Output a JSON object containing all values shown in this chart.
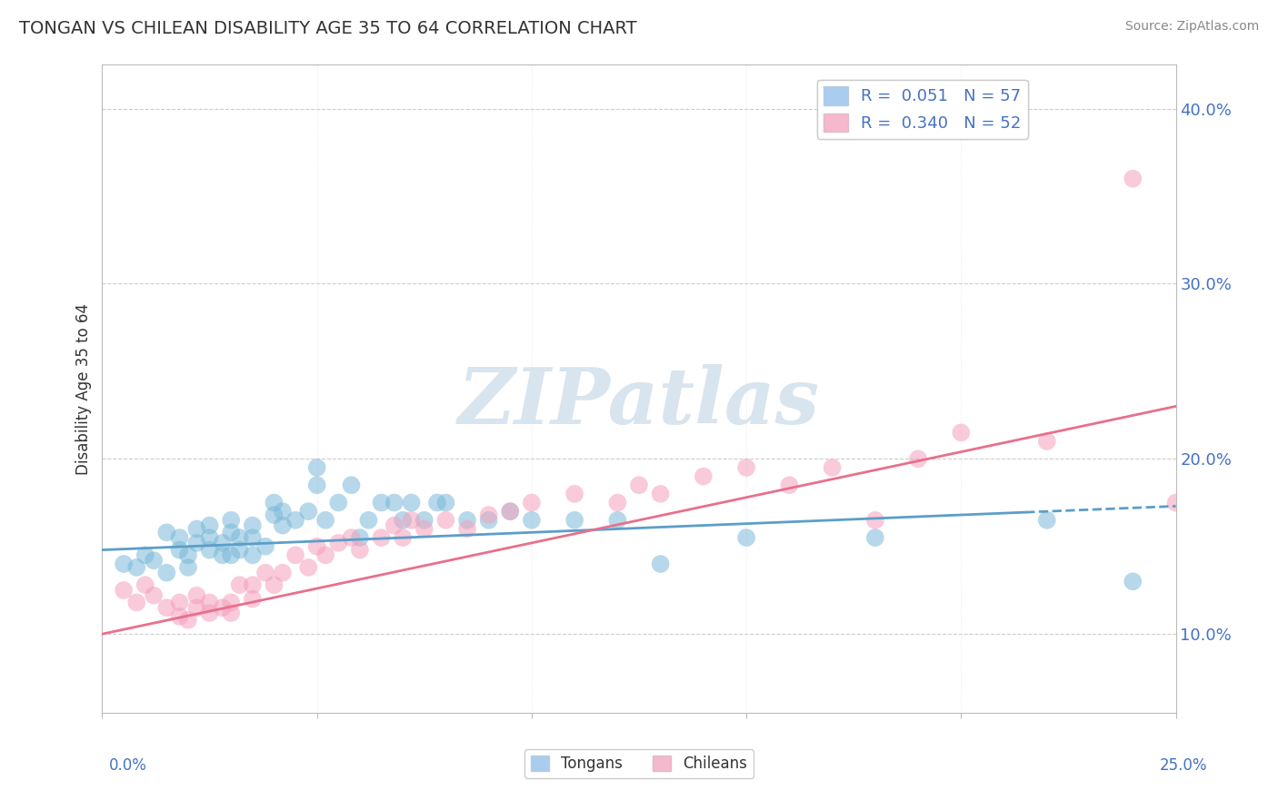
{
  "title": "TONGAN VS CHILEAN DISABILITY AGE 35 TO 64 CORRELATION CHART",
  "source": "Source: ZipAtlas.com",
  "ylabel": "Disability Age 35 to 64",
  "yticks": [
    0.1,
    0.2,
    0.3,
    0.4
  ],
  "ytick_labels": [
    "10.0%",
    "20.0%",
    "30.0%",
    "40.0%"
  ],
  "xlim": [
    0.0,
    0.25
  ],
  "ylim": [
    0.055,
    0.425
  ],
  "tongans_color": "#7ab8d9",
  "chileans_color": "#f5a0bc",
  "tongans_line_color": "#5b9ec9",
  "chileans_line_color": "#e8708a",
  "watermark": "ZIPatlas",
  "watermark_color": "#d8e4ee",
  "legend_label_1": "R =  0.051   N = 57",
  "legend_label_2": "R =  0.340   N = 52",
  "legend_color_1": "#aaccee",
  "legend_color_2": "#f5b8cc",
  "bottom_legend_1": "Tongans",
  "bottom_legend_2": "Chileans",
  "tongans_x": [
    0.005,
    0.008,
    0.01,
    0.012,
    0.015,
    0.015,
    0.018,
    0.018,
    0.02,
    0.02,
    0.022,
    0.022,
    0.025,
    0.025,
    0.025,
    0.028,
    0.028,
    0.03,
    0.03,
    0.03,
    0.032,
    0.032,
    0.035,
    0.035,
    0.035,
    0.038,
    0.04,
    0.04,
    0.042,
    0.042,
    0.045,
    0.048,
    0.05,
    0.05,
    0.052,
    0.055,
    0.058,
    0.06,
    0.062,
    0.065,
    0.068,
    0.07,
    0.072,
    0.075,
    0.078,
    0.08,
    0.085,
    0.09,
    0.095,
    0.1,
    0.11,
    0.12,
    0.13,
    0.15,
    0.18,
    0.22,
    0.24
  ],
  "tongans_y": [
    0.14,
    0.138,
    0.145,
    0.142,
    0.158,
    0.135,
    0.148,
    0.155,
    0.145,
    0.138,
    0.152,
    0.16,
    0.148,
    0.155,
    0.162,
    0.145,
    0.152,
    0.145,
    0.158,
    0.165,
    0.148,
    0.155,
    0.145,
    0.155,
    0.162,
    0.15,
    0.168,
    0.175,
    0.162,
    0.17,
    0.165,
    0.17,
    0.185,
    0.195,
    0.165,
    0.175,
    0.185,
    0.155,
    0.165,
    0.175,
    0.175,
    0.165,
    0.175,
    0.165,
    0.175,
    0.175,
    0.165,
    0.165,
    0.17,
    0.165,
    0.165,
    0.165,
    0.14,
    0.155,
    0.155,
    0.165,
    0.13
  ],
  "chileans_x": [
    0.005,
    0.008,
    0.01,
    0.012,
    0.015,
    0.018,
    0.018,
    0.02,
    0.022,
    0.022,
    0.025,
    0.025,
    0.028,
    0.03,
    0.03,
    0.032,
    0.035,
    0.035,
    0.038,
    0.04,
    0.042,
    0.045,
    0.048,
    0.05,
    0.052,
    0.055,
    0.058,
    0.06,
    0.065,
    0.068,
    0.07,
    0.072,
    0.075,
    0.08,
    0.085,
    0.09,
    0.095,
    0.1,
    0.11,
    0.12,
    0.125,
    0.13,
    0.14,
    0.15,
    0.16,
    0.17,
    0.18,
    0.19,
    0.2,
    0.22,
    0.24,
    0.25
  ],
  "chileans_y": [
    0.125,
    0.118,
    0.128,
    0.122,
    0.115,
    0.11,
    0.118,
    0.108,
    0.115,
    0.122,
    0.112,
    0.118,
    0.115,
    0.112,
    0.118,
    0.128,
    0.12,
    0.128,
    0.135,
    0.128,
    0.135,
    0.145,
    0.138,
    0.15,
    0.145,
    0.152,
    0.155,
    0.148,
    0.155,
    0.162,
    0.155,
    0.165,
    0.16,
    0.165,
    0.16,
    0.168,
    0.17,
    0.175,
    0.18,
    0.175,
    0.185,
    0.18,
    0.19,
    0.195,
    0.185,
    0.195,
    0.165,
    0.2,
    0.215,
    0.21,
    0.36,
    0.175
  ],
  "tongans_intercept": 0.148,
  "tongans_slope": 0.1,
  "chileans_intercept": 0.1,
  "chileans_slope": 0.52
}
